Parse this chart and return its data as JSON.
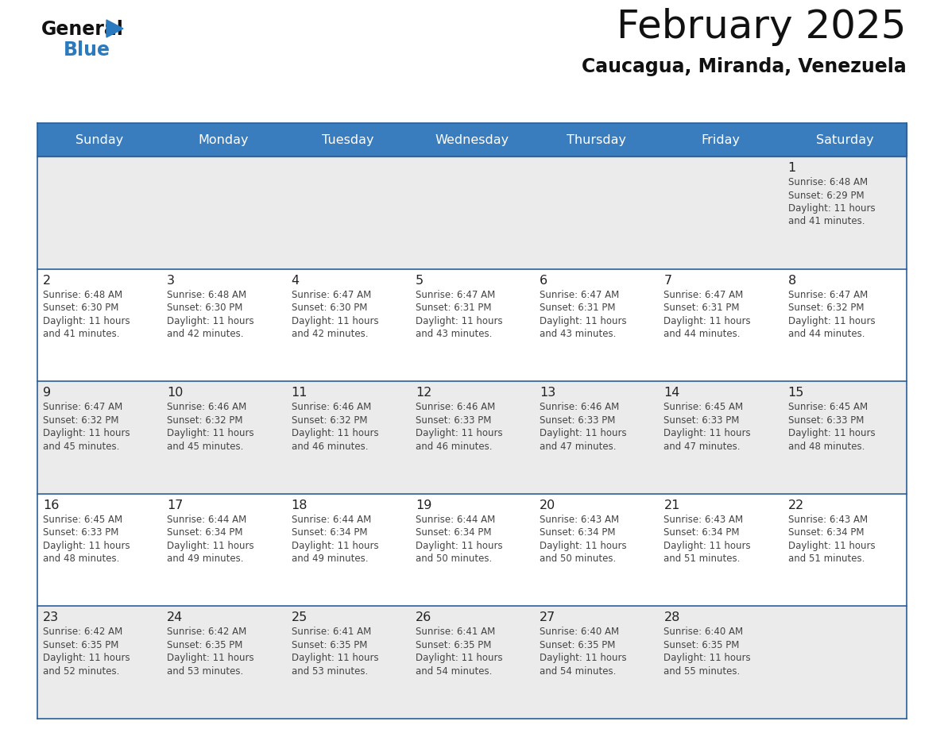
{
  "title": "February 2025",
  "subtitle": "Caucagua, Miranda, Venezuela",
  "header_bg_color": "#3a7dbf",
  "header_text_color": "#ffffff",
  "day_names": [
    "Sunday",
    "Monday",
    "Tuesday",
    "Wednesday",
    "Thursday",
    "Friday",
    "Saturday"
  ],
  "bg_color": "#ffffff",
  "cell_bg_light": "#ebebeb",
  "cell_bg_white": "#ffffff",
  "row_line_color": "#2a6099",
  "day_num_color": "#222222",
  "text_color": "#444444",
  "title_color": "#111111",
  "subtitle_color": "#111111",
  "logo_general_color": "#111111",
  "logo_blue_color": "#2a7abf",
  "calendar": [
    [
      null,
      null,
      null,
      null,
      null,
      null,
      {
        "day": 1,
        "sunrise": "6:48 AM",
        "sunset": "6:29 PM",
        "daylight": "11 hours and 41 minutes."
      }
    ],
    [
      {
        "day": 2,
        "sunrise": "6:48 AM",
        "sunset": "6:30 PM",
        "daylight": "11 hours and 41 minutes."
      },
      {
        "day": 3,
        "sunrise": "6:48 AM",
        "sunset": "6:30 PM",
        "daylight": "11 hours and 42 minutes."
      },
      {
        "day": 4,
        "sunrise": "6:47 AM",
        "sunset": "6:30 PM",
        "daylight": "11 hours and 42 minutes."
      },
      {
        "day": 5,
        "sunrise": "6:47 AM",
        "sunset": "6:31 PM",
        "daylight": "11 hours and 43 minutes."
      },
      {
        "day": 6,
        "sunrise": "6:47 AM",
        "sunset": "6:31 PM",
        "daylight": "11 hours and 43 minutes."
      },
      {
        "day": 7,
        "sunrise": "6:47 AM",
        "sunset": "6:31 PM",
        "daylight": "11 hours and 44 minutes."
      },
      {
        "day": 8,
        "sunrise": "6:47 AM",
        "sunset": "6:32 PM",
        "daylight": "11 hours and 44 minutes."
      }
    ],
    [
      {
        "day": 9,
        "sunrise": "6:47 AM",
        "sunset": "6:32 PM",
        "daylight": "11 hours and 45 minutes."
      },
      {
        "day": 10,
        "sunrise": "6:46 AM",
        "sunset": "6:32 PM",
        "daylight": "11 hours and 45 minutes."
      },
      {
        "day": 11,
        "sunrise": "6:46 AM",
        "sunset": "6:32 PM",
        "daylight": "11 hours and 46 minutes."
      },
      {
        "day": 12,
        "sunrise": "6:46 AM",
        "sunset": "6:33 PM",
        "daylight": "11 hours and 46 minutes."
      },
      {
        "day": 13,
        "sunrise": "6:46 AM",
        "sunset": "6:33 PM",
        "daylight": "11 hours and 47 minutes."
      },
      {
        "day": 14,
        "sunrise": "6:45 AM",
        "sunset": "6:33 PM",
        "daylight": "11 hours and 47 minutes."
      },
      {
        "day": 15,
        "sunrise": "6:45 AM",
        "sunset": "6:33 PM",
        "daylight": "11 hours and 48 minutes."
      }
    ],
    [
      {
        "day": 16,
        "sunrise": "6:45 AM",
        "sunset": "6:33 PM",
        "daylight": "11 hours and 48 minutes."
      },
      {
        "day": 17,
        "sunrise": "6:44 AM",
        "sunset": "6:34 PM",
        "daylight": "11 hours and 49 minutes."
      },
      {
        "day": 18,
        "sunrise": "6:44 AM",
        "sunset": "6:34 PM",
        "daylight": "11 hours and 49 minutes."
      },
      {
        "day": 19,
        "sunrise": "6:44 AM",
        "sunset": "6:34 PM",
        "daylight": "11 hours and 50 minutes."
      },
      {
        "day": 20,
        "sunrise": "6:43 AM",
        "sunset": "6:34 PM",
        "daylight": "11 hours and 50 minutes."
      },
      {
        "day": 21,
        "sunrise": "6:43 AM",
        "sunset": "6:34 PM",
        "daylight": "11 hours and 51 minutes."
      },
      {
        "day": 22,
        "sunrise": "6:43 AM",
        "sunset": "6:34 PM",
        "daylight": "11 hours and 51 minutes."
      }
    ],
    [
      {
        "day": 23,
        "sunrise": "6:42 AM",
        "sunset": "6:35 PM",
        "daylight": "11 hours and 52 minutes."
      },
      {
        "day": 24,
        "sunrise": "6:42 AM",
        "sunset": "6:35 PM",
        "daylight": "11 hours and 53 minutes."
      },
      {
        "day": 25,
        "sunrise": "6:41 AM",
        "sunset": "6:35 PM",
        "daylight": "11 hours and 53 minutes."
      },
      {
        "day": 26,
        "sunrise": "6:41 AM",
        "sunset": "6:35 PM",
        "daylight": "11 hours and 54 minutes."
      },
      {
        "day": 27,
        "sunrise": "6:40 AM",
        "sunset": "6:35 PM",
        "daylight": "11 hours and 54 minutes."
      },
      {
        "day": 28,
        "sunrise": "6:40 AM",
        "sunset": "6:35 PM",
        "daylight": "11 hours and 55 minutes."
      },
      null
    ]
  ]
}
